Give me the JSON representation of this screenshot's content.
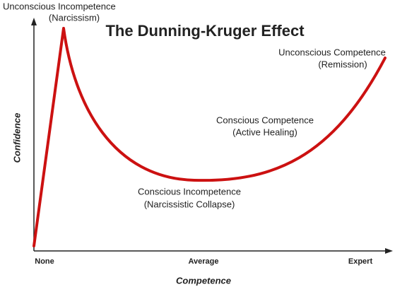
{
  "title": "The Dunning-Kruger Effect",
  "axes": {
    "x_label": "Competence",
    "y_label": "Confidence",
    "x_ticks": [
      "None",
      "Average",
      "Expert"
    ]
  },
  "stages": [
    {
      "label": "Unconscious Incompetence",
      "note": "(Narcissism)"
    },
    {
      "label": "Conscious Incompetence",
      "note": "(Narcissistic Collapse)"
    },
    {
      "label": "Conscious Competence",
      "note": "(Active Healing)"
    },
    {
      "label": "Unconscious Competence",
      "note": "(Remission)"
    }
  ]
}
